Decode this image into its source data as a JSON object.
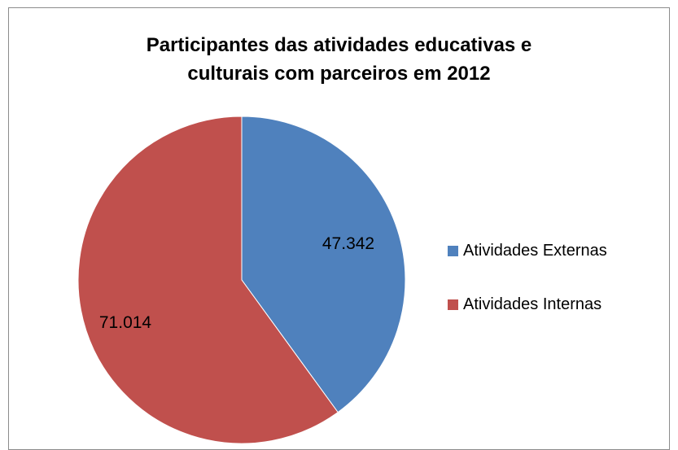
{
  "chart_data": {
    "type": "pie",
    "title_lines": [
      "Participantes das atividades educativas e",
      "culturais com parceiros em 2012"
    ],
    "slices": [
      {
        "label": "Atividades Externas",
        "value": 47342,
        "display": "47.342",
        "color": "#4f81bd"
      },
      {
        "label": "Atividades Internas",
        "value": 71014,
        "display": "71.014",
        "color": "#c0504d"
      }
    ],
    "start_angle_deg": 0,
    "direction": "clockwise",
    "legend_position": "right"
  }
}
